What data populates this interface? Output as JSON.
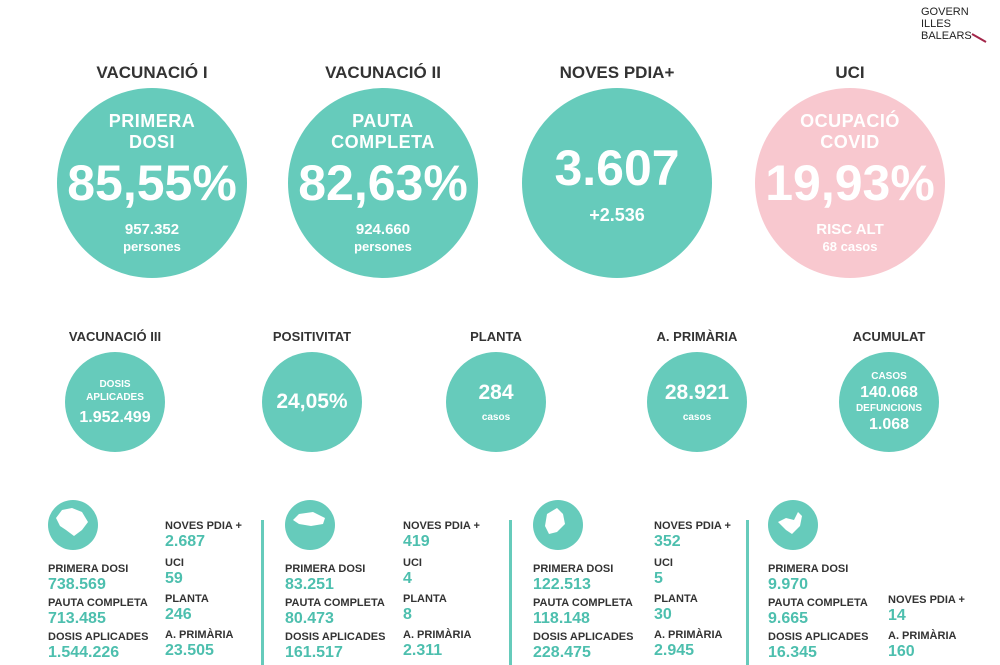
{
  "logo": [
    "GOVERN",
    "ILLES",
    "BALEARS"
  ],
  "main": [
    {
      "heading": "VACUNACIÓ I",
      "label": "PRIMERA DOSI",
      "value": "85,55%",
      "details": [
        "957.352",
        "persones"
      ]
    },
    {
      "heading": "VACUNACIÓ II",
      "label": "PAUTA COMPLETA",
      "value": "82,63%",
      "details": [
        "924.660",
        "persones"
      ]
    },
    {
      "heading": "NOVES PDIA+",
      "value": "3.607",
      "details": [
        "+2.536"
      ]
    },
    {
      "heading": "UCI",
      "label": "OCUPACIÓ COVID",
      "value": "19,93%",
      "details": [
        "RISC ALT",
        "68 casos"
      ]
    }
  ],
  "secondary": [
    {
      "heading": "VACUNACIÓ III",
      "lines": [
        "DOSIS APLICADES",
        "1.952.499"
      ]
    },
    {
      "heading": "POSITIVITAT",
      "lines": [
        "24,05%"
      ]
    },
    {
      "heading": "PLANTA",
      "lines": [
        "284",
        "casos"
      ]
    },
    {
      "heading": "A. PRIMÀRIA",
      "lines": [
        "28.921",
        "casos"
      ]
    },
    {
      "heading": "ACUMULAT",
      "lines": [
        "CASOS",
        "140.068",
        "DEFUNCIONS",
        "1.068"
      ]
    }
  ],
  "islands": [
    {
      "left": [
        {
          "label": "PRIMERA DOSI",
          "value": "738.569"
        },
        {
          "label": "PAUTA COMPLETA",
          "value": "713.485"
        },
        {
          "label": "DOSIS APLICADES",
          "value": "1.544.226"
        }
      ],
      "right": [
        {
          "label": "NOVES PDIA +",
          "value": "2.687"
        },
        {
          "label": "UCI",
          "value": "59"
        },
        {
          "label": "PLANTA",
          "value": "246"
        },
        {
          "label": "A. PRIMÀRIA",
          "value": "23.505"
        }
      ]
    },
    {
      "left": [
        {
          "label": "PRIMERA DOSI",
          "value": "83.251"
        },
        {
          "label": "PAUTA COMPLETA",
          "value": "80.473"
        },
        {
          "label": "DOSIS APLICADES",
          "value": "161.517"
        }
      ],
      "right": [
        {
          "label": "NOVES PDIA +",
          "value": "419"
        },
        {
          "label": "UCI",
          "value": "4"
        },
        {
          "label": "PLANTA",
          "value": "8"
        },
        {
          "label": "A. PRIMÀRIA",
          "value": "2.311"
        }
      ]
    },
    {
      "left": [
        {
          "label": "PRIMERA DOSI",
          "value": "122.513"
        },
        {
          "label": "PAUTA COMPLETA",
          "value": "118.148"
        },
        {
          "label": "DOSIS APLICADES",
          "value": "228.475"
        }
      ],
      "right": [
        {
          "label": "NOVES PDIA +",
          "value": "352"
        },
        {
          "label": "UCI",
          "value": "5"
        },
        {
          "label": "PLANTA",
          "value": "30"
        },
        {
          "label": "A. PRIMÀRIA",
          "value": "2.945"
        }
      ]
    },
    {
      "left": [
        {
          "label": "PRIMERA DOSI",
          "value": "9.970"
        },
        {
          "label": "PAUTA COMPLETA",
          "value": "9.665"
        },
        {
          "label": "DOSIS APLICADES",
          "value": "16.345"
        }
      ],
      "right": [
        {
          "label": "NOVES PDIA +",
          "value": "14"
        },
        {
          "label": "A. PRIMÀRIA",
          "value": "160"
        }
      ]
    }
  ]
}
